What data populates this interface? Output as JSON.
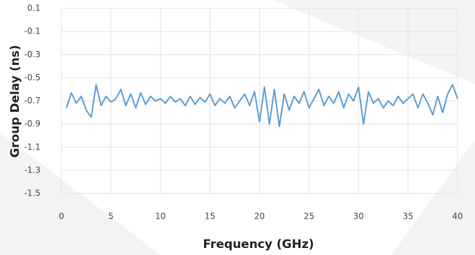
{
  "chart_data": {
    "type": "line",
    "xlabel": "Frequency (GHz)",
    "ylabel": "Group Delay (ns)",
    "x": [
      0.5,
      1,
      1.5,
      2,
      2.5,
      3,
      3.5,
      4,
      4.5,
      5,
      5.5,
      6,
      6.5,
      7,
      7.5,
      8,
      8.5,
      9,
      9.5,
      10,
      10.5,
      11,
      11.5,
      12,
      12.5,
      13,
      13.5,
      14,
      14.5,
      15,
      15.5,
      16,
      16.5,
      17,
      17.5,
      18,
      18.5,
      19,
      19.5,
      20,
      20.5,
      21,
      21.5,
      22,
      22.5,
      23,
      23.5,
      24,
      24.5,
      25,
      25.5,
      26,
      26.5,
      27,
      27.5,
      28,
      28.5,
      29,
      29.5,
      30,
      30.5,
      31,
      31.5,
      32,
      32.5,
      33,
      33.5,
      34,
      34.5,
      35,
      35.5,
      36,
      36.5,
      37,
      37.5,
      38,
      38.5,
      39,
      39.5,
      40
    ],
    "series": [
      {
        "color": "#5b9bd5",
        "values": [
          -0.76,
          -0.63,
          -0.72,
          -0.66,
          -0.78,
          -0.84,
          -0.56,
          -0.74,
          -0.66,
          -0.71,
          -0.68,
          -0.6,
          -0.74,
          -0.64,
          -0.76,
          -0.63,
          -0.73,
          -0.66,
          -0.7,
          -0.68,
          -0.72,
          -0.66,
          -0.71,
          -0.68,
          -0.74,
          -0.66,
          -0.73,
          -0.67,
          -0.71,
          -0.64,
          -0.74,
          -0.68,
          -0.72,
          -0.66,
          -0.76,
          -0.7,
          -0.64,
          -0.74,
          -0.62,
          -0.88,
          -0.58,
          -0.9,
          -0.6,
          -0.92,
          -0.64,
          -0.78,
          -0.66,
          -0.72,
          -0.62,
          -0.76,
          -0.68,
          -0.6,
          -0.74,
          -0.66,
          -0.72,
          -0.62,
          -0.76,
          -0.64,
          -0.7,
          -0.58,
          -0.9,
          -0.62,
          -0.72,
          -0.68,
          -0.76,
          -0.7,
          -0.74,
          -0.66,
          -0.72,
          -0.68,
          -0.64,
          -0.76,
          -0.64,
          -0.72,
          -0.82,
          -0.66,
          -0.8,
          -0.64,
          -0.56,
          -0.68
        ]
      }
    ],
    "xlim": [
      0,
      40
    ],
    "xticks": [
      0,
      5,
      10,
      15,
      20,
      25,
      30,
      35,
      40
    ],
    "ylim": [
      -1.5,
      0.1
    ],
    "yticks": [
      0.1,
      -0.1,
      -0.3,
      -0.5,
      -0.7,
      -0.9,
      -1.1,
      -1.3,
      -1.5
    ],
    "grid": true
  }
}
